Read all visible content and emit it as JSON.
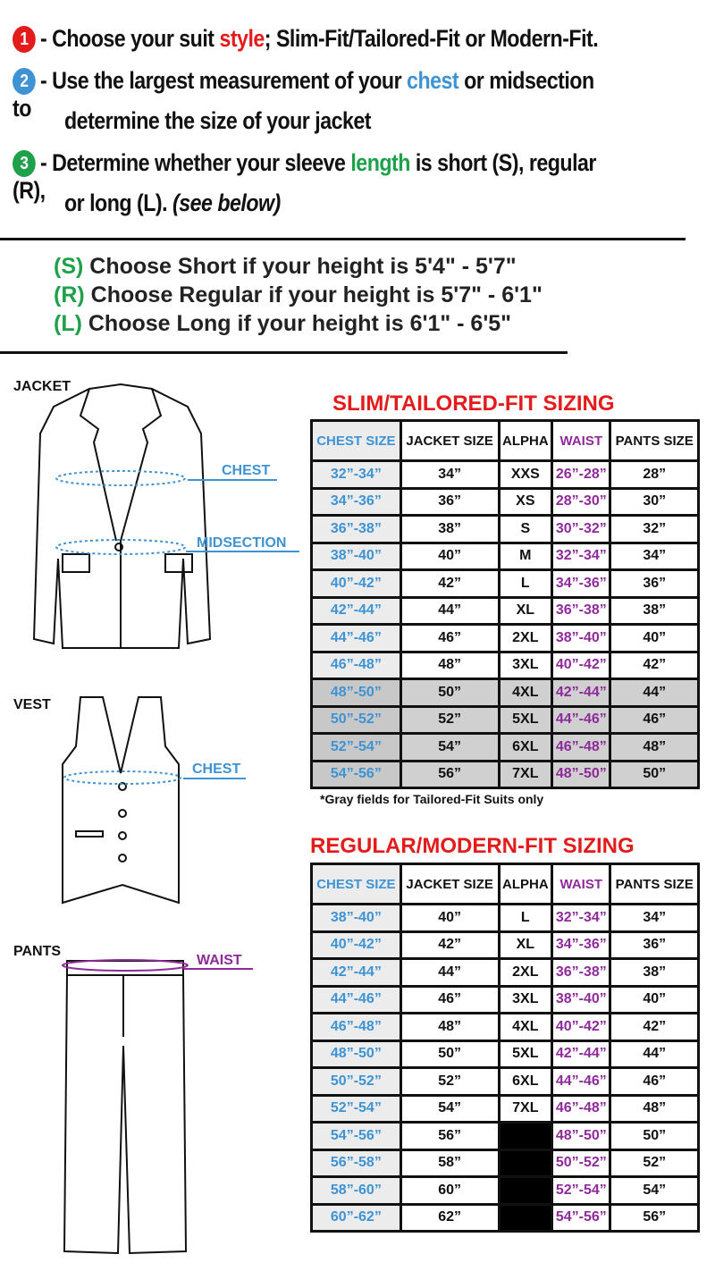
{
  "steps": [
    {
      "num": "1",
      "color": "#e41b1b",
      "parts": [
        "- Choose your suit ",
        "style",
        "; Slim-Fit/Tailored-Fit or Modern-Fit."
      ],
      "accent": "#e41b1b"
    },
    {
      "num": "2",
      "color": "#3d93d3",
      "parts": [
        "- Use the largest measurement of your ",
        "chest",
        " or midsection to"
      ],
      "line2": "determine the size of your jacket",
      "accent": "#3d93d3"
    },
    {
      "num": "3",
      "color": "#1fa04b",
      "parts": [
        "- Determine whether your sleeve ",
        "length",
        " is short (S), regular (R),"
      ],
      "line2": "or long (L).",
      "line2_italic": "(see below)",
      "accent": "#1fa04b"
    }
  ],
  "lengths": [
    {
      "key": "(S)",
      "text": "Choose Short if your height is 5'4\" - 5'7\""
    },
    {
      "key": "(R)",
      "text": "Choose Regular if your height is  5'7\" - 6'1\""
    },
    {
      "key": "(L)",
      "text": "Choose Long if your height is  6'1\" - 6'5\""
    }
  ],
  "garments": {
    "jacket": "JACKET",
    "vest": "VEST",
    "pants": "PANTS",
    "chest": "CHEST",
    "midsection": "MIDSECTION",
    "waist": "WAIST"
  },
  "headers": [
    "CHEST SIZE",
    "JACKET SIZE",
    "ALPHA",
    "WAIST",
    "PANTS SIZE"
  ],
  "slim": {
    "title": "SLIM/TAILORED-FIT SIZING",
    "note": "*Gray fields for Tailored-Fit Suits only",
    "rows": [
      [
        "32”-34”",
        "34”",
        "XXS",
        "26”-28”",
        "28”"
      ],
      [
        "34”-36”",
        "36”",
        "XS",
        "28”-30”",
        "30”"
      ],
      [
        "36”-38”",
        "38”",
        "S",
        "30”-32”",
        "32”"
      ],
      [
        "38”-40”",
        "40”",
        "M",
        "32”-34”",
        "34”"
      ],
      [
        "40”-42”",
        "42”",
        "L",
        "34”-36”",
        "36”"
      ],
      [
        "42”-44”",
        "44”",
        "XL",
        "36”-38”",
        "38”"
      ],
      [
        "44”-46”",
        "46”",
        "2XL",
        "38”-40”",
        "40”"
      ],
      [
        "46”-48”",
        "48”",
        "3XL",
        "40”-42”",
        "42”"
      ],
      [
        "48”-50”",
        "50”",
        "4XL",
        "42”-44”",
        "44”"
      ],
      [
        "50”-52”",
        "52”",
        "5XL",
        "44”-46”",
        "46”"
      ],
      [
        "52”-54”",
        "54”",
        "6XL",
        "46”-48”",
        "48”"
      ],
      [
        "54”-56”",
        "56”",
        "7XL",
        "48”-50”",
        "50”"
      ]
    ],
    "gray_from_row": 8
  },
  "regular": {
    "title": "REGULAR/MODERN-FIT SIZING",
    "rows": [
      [
        "38”-40”",
        "40”",
        "L",
        "32”-34”",
        "34”"
      ],
      [
        "40”-42”",
        "42”",
        "XL",
        "34”-36”",
        "36”"
      ],
      [
        "42”-44”",
        "44”",
        "2XL",
        "36”-38”",
        "38”"
      ],
      [
        "44”-46”",
        "46”",
        "3XL",
        "38”-40”",
        "40”"
      ],
      [
        "46”-48”",
        "48”",
        "4XL",
        "40”-42”",
        "42”"
      ],
      [
        "48”-50”",
        "50”",
        "5XL",
        "42”-44”",
        "44”"
      ],
      [
        "50”-52”",
        "52”",
        "6XL",
        "44”-46”",
        "46”"
      ],
      [
        "52”-54”",
        "54”",
        "7XL",
        "46”-48”",
        "48”"
      ],
      [
        "54”-56”",
        "56”",
        "",
        "48”-50”",
        "50”"
      ],
      [
        "56”-58”",
        "58”",
        "",
        "50”-52”",
        "52”"
      ],
      [
        "58”-60”",
        "60”",
        "",
        "52”-54”",
        "54”"
      ],
      [
        "60”-62”",
        "62”",
        "",
        "54”-56”",
        "56”"
      ]
    ]
  }
}
